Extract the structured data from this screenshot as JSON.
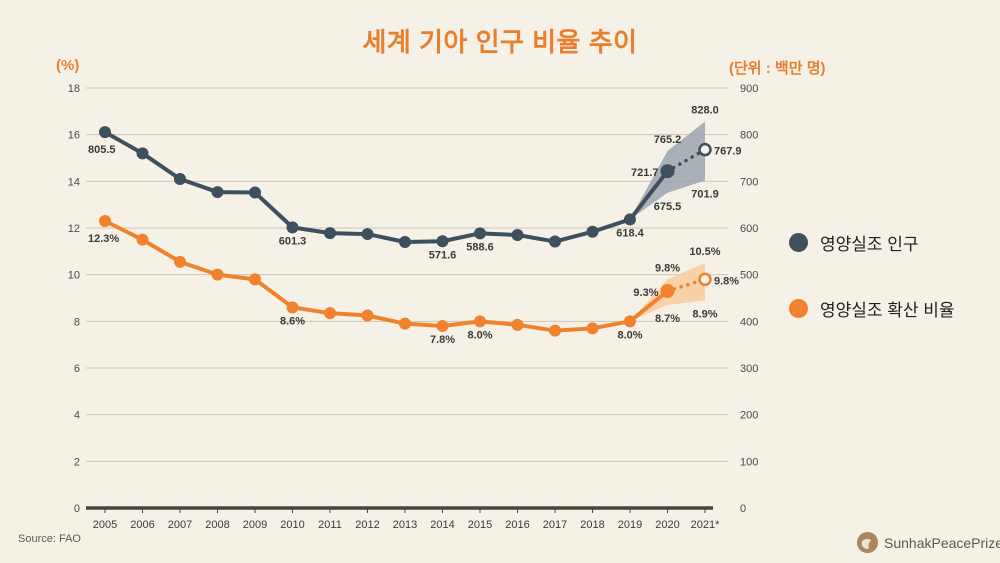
{
  "title": "세계 기아 인구 비율 추이",
  "left_axis_unit": "(%)",
  "right_axis_unit": "(단위 : 백만 명)",
  "source": "Source: FAO",
  "logo_text": "SunhakPeacePrize",
  "colors": {
    "background": "#f5f1e6",
    "accent_orange": "#e87f2e",
    "navy_series": "#3e4f5d",
    "orange_series": "#f0822d",
    "navy_band": "#9ba4ae",
    "orange_band": "#f8cda0",
    "grid": "#ccc6ba",
    "axis": "#4b453f"
  },
  "legend": [
    {
      "label": "영양실조 인구",
      "color": "#3e4f5d"
    },
    {
      "label": "영양실조 확산 비율",
      "color": "#f0822d"
    }
  ],
  "chart_data": {
    "type": "line",
    "title": "세계 기아 인구 비율 추이",
    "x": [
      "2005",
      "2006",
      "2007",
      "2008",
      "2009",
      "2010",
      "2011",
      "2012",
      "2013",
      "2014",
      "2015",
      "2016",
      "2017",
      "2018",
      "2019",
      "2020",
      "2021*"
    ],
    "left_axis": {
      "unit": "(%)",
      "ticks": [
        0,
        2,
        4,
        6,
        8,
        10,
        12,
        14,
        16,
        18
      ],
      "range": [
        0,
        18
      ]
    },
    "right_axis": {
      "unit": "(단위 : 백만 명)",
      "ticks": [
        0,
        100,
        200,
        300,
        400,
        500,
        600,
        700,
        800,
        900
      ],
      "range": [
        0,
        900
      ]
    },
    "grid": true,
    "legend_position": "right",
    "series": [
      {
        "name": "영양실조 인구",
        "axis": "right",
        "color": "#3e4f5d",
        "values": [
          805.5,
          760,
          705,
          677,
          676,
          601.3,
          589,
          587,
          570,
          571.6,
          588.6,
          585,
          571,
          592,
          618.4,
          721.7,
          767.9
        ],
        "projected_from_index": 15
      },
      {
        "name": "영양실조 확산 비율",
        "axis": "left",
        "color": "#f0822d",
        "values": [
          12.3,
          11.5,
          10.55,
          10.0,
          9.8,
          8.6,
          8.35,
          8.25,
          7.9,
          7.8,
          8.0,
          7.85,
          7.6,
          7.7,
          8.0,
          9.3,
          9.8
        ],
        "projected_from_index": 15
      }
    ],
    "bands": [
      {
        "series": 0,
        "x_indices": [
          14,
          15,
          16
        ],
        "upper": [
          618.4,
          765.2,
          828.0
        ],
        "lower": [
          618.4,
          675.5,
          701.9
        ],
        "color": "#9ba4ae",
        "opacity": 0.85
      },
      {
        "series": 1,
        "x_indices": [
          14,
          15,
          16
        ],
        "upper": [
          8.0,
          9.8,
          10.5
        ],
        "lower": [
          8.0,
          8.7,
          8.9
        ],
        "color": "#f8cda0",
        "opacity": 0.9
      }
    ],
    "labels": [
      {
        "series": 0,
        "xi": 0,
        "text": "805.5",
        "pos": "below-left"
      },
      {
        "series": 0,
        "xi": 5,
        "text": "601.3",
        "pos": "below"
      },
      {
        "series": 0,
        "xi": 9,
        "text": "571.6",
        "pos": "below"
      },
      {
        "series": 0,
        "xi": 10,
        "text": "588.6",
        "pos": "below"
      },
      {
        "series": 0,
        "xi": 14,
        "text": "618.4",
        "pos": "below"
      },
      {
        "series": 0,
        "xi": 15,
        "text": "721.7",
        "pos": "left"
      },
      {
        "series": 0,
        "xi": 15,
        "value": 765.2,
        "text": "765.2",
        "pos": "above"
      },
      {
        "series": 0,
        "xi": 15,
        "value": 675.5,
        "text": "675.5",
        "pos": "below"
      },
      {
        "series": 0,
        "xi": 16,
        "value": 828.0,
        "text": "828.0",
        "pos": "above"
      },
      {
        "series": 0,
        "xi": 16,
        "value": 701.9,
        "text": "701.9",
        "pos": "below"
      },
      {
        "series": 0,
        "xi": 16,
        "text": "767.9",
        "pos": "right"
      },
      {
        "series": 1,
        "xi": 0,
        "text": "12.3%",
        "pos": "below-left"
      },
      {
        "series": 1,
        "xi": 5,
        "text": "8.6%",
        "pos": "below"
      },
      {
        "series": 1,
        "xi": 9,
        "text": "7.8%",
        "pos": "below"
      },
      {
        "series": 1,
        "xi": 10,
        "text": "8.0%",
        "pos": "below"
      },
      {
        "series": 1,
        "xi": 14,
        "text": "8.0%",
        "pos": "below"
      },
      {
        "series": 1,
        "xi": 15,
        "text": "9.3%",
        "pos": "left"
      },
      {
        "series": 1,
        "xi": 15,
        "value": 9.8,
        "text": "9.8%",
        "pos": "above"
      },
      {
        "series": 1,
        "xi": 15,
        "value": 8.7,
        "text": "8.7%",
        "pos": "below"
      },
      {
        "series": 1,
        "xi": 16,
        "value": 10.5,
        "text": "10.5%",
        "pos": "above"
      },
      {
        "series": 1,
        "xi": 16,
        "value": 8.9,
        "text": "8.9%",
        "pos": "below"
      },
      {
        "series": 1,
        "xi": 16,
        "text": "9.8%",
        "pos": "right"
      }
    ]
  }
}
